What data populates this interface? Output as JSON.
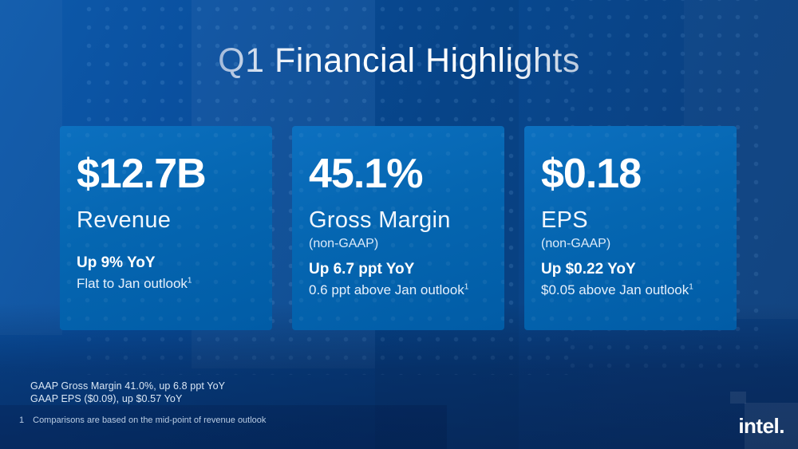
{
  "slide": {
    "title": "Q1 Financial Highlights",
    "cards": [
      {
        "value": "$12.7B",
        "label": "Revenue",
        "sublabel": "",
        "stat_bold": "Up 9% YoY",
        "stat_sub": "Flat to Jan outlook",
        "stat_sub_sup": "1"
      },
      {
        "value": "45.1%",
        "label": "Gross Margin",
        "sublabel": "(non-GAAP)",
        "stat_bold": "Up 6.7 ppt YoY",
        "stat_sub": "0.6 ppt above Jan outlook",
        "stat_sub_sup": "1"
      },
      {
        "value": "$0.18",
        "label": "EPS",
        "sublabel": "(non-GAAP)",
        "stat_bold": "Up $0.22 YoY",
        "stat_sub": "$0.05 above Jan outlook",
        "stat_sub_sup": "1"
      }
    ],
    "gaap_notes": {
      "line1": "GAAP Gross Margin 41.0%, up 6.8 ppt YoY",
      "line2": "GAAP EPS ($0.09), up $0.57 YoY"
    },
    "footnote": {
      "marker": "1",
      "text": "Comparisons are based on the mid-point of revenue outlook"
    },
    "logo_text": "intel.",
    "colors": {
      "card_blue": "#0566b1",
      "background_blue": "#08488f",
      "dark_navy": "#0c3a72",
      "text_white": "#ffffff"
    }
  }
}
